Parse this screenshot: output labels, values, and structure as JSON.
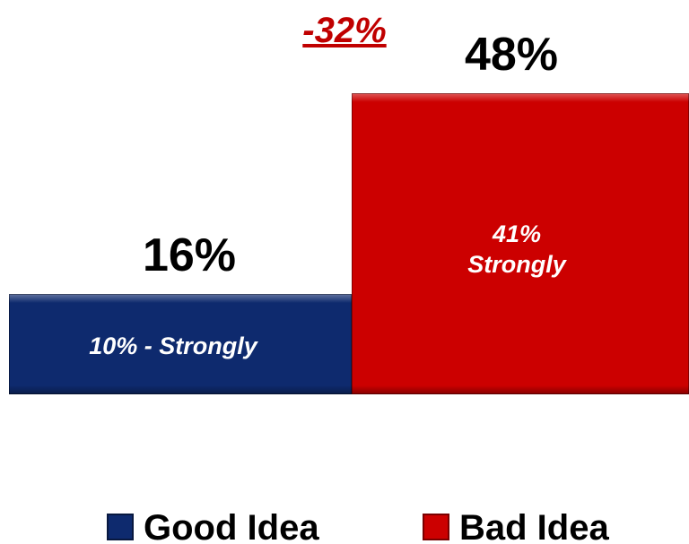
{
  "chart_data": {
    "type": "bar",
    "title": "",
    "difference_label": "-32%",
    "xlabel": "",
    "ylabel": "",
    "ylim": [
      0,
      60
    ],
    "grid": false,
    "legend_position": "bottom",
    "categories": [
      "Good Idea",
      "Bad Idea"
    ],
    "series": [
      {
        "name": "Good Idea",
        "value": 16,
        "value_label": "16%",
        "strongly_value": 10,
        "inner_label_lines": [
          "10% - Strongly"
        ],
        "color": "#0e2a6e"
      },
      {
        "name": "Bad Idea",
        "value": 48,
        "value_label": "48%",
        "strongly_value": 41,
        "inner_label_lines": [
          "41%",
          "Strongly"
        ],
        "color": "#cc0000"
      }
    ]
  },
  "colors": {
    "difference": "#c00000",
    "good": "#0e2a6e",
    "bad": "#cc0000",
    "text": "#000000"
  }
}
